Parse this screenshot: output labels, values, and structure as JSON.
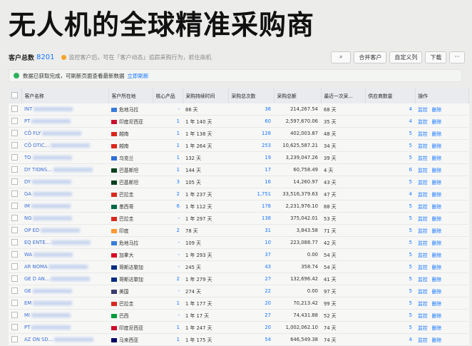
{
  "header": {
    "title": "无人机的全球精准采购商"
  },
  "toolbar": {
    "count_label": "客户总数",
    "count": "8201",
    "tip": "监控客户后，可在「客户动态」追踪采购行为，抓住商机",
    "buttons": [
      "合并客户",
      "自定义列",
      "下载",
      "···"
    ]
  },
  "banner": {
    "message": "数据已获取完成，可刷新页面查看最新数据",
    "link": "立即刷新"
  },
  "table": {
    "columns": [
      "客户名称",
      "客户所在地",
      "核心产品",
      "采购持续时间",
      "采购总次数",
      "采购总额",
      "最近一次采...",
      "供应商数量",
      "操作"
    ],
    "actions": [
      "监控",
      "删除"
    ],
    "rows": [
      [
        "INT",
        "危地马拉",
        "-",
        "86 天",
        "38",
        "214,267.54",
        "68 天",
        "4"
      ],
      [
        "PT",
        "印度尼西亚",
        "1",
        "1 年 140 天",
        "60",
        "2,597,670.06",
        "35 天",
        "4"
      ],
      [
        "CÔ FLY",
        "越南",
        "1",
        "1 年 138 天",
        "128",
        "402,003.87",
        "48 天",
        "5"
      ],
      [
        "CÔ OTIC...",
        "越南",
        "1",
        "1 年 264 天",
        "253",
        "10,625,587.21",
        "34 天",
        "5"
      ],
      [
        "TO",
        "乌克兰",
        "1",
        "132 天",
        "19",
        "3,239,047.26",
        "39 天",
        "5"
      ],
      [
        "DY TIONS...",
        "巴基斯坦",
        "1",
        "144 天",
        "17",
        "60,758.49",
        "4 天",
        "6"
      ],
      [
        "DY",
        "巴基斯坦",
        "3",
        "105 天",
        "16",
        "14,260.97",
        "43 天",
        "5"
      ],
      [
        "GA",
        "巴拉圭",
        "2",
        "1 年 237 天",
        "1,751",
        "33,516,379.63",
        "47 天",
        "4"
      ],
      [
        "IM",
        "墨西哥",
        "6",
        "1 年 112 天",
        "178",
        "2,231,976.10",
        "88 天",
        "5"
      ],
      [
        "NG",
        "巴拉圭",
        "-",
        "1 年 297 天",
        "138",
        "375,042.01",
        "53 天",
        "5"
      ],
      [
        "OP ED",
        "印度",
        "2",
        "78 天",
        "31",
        "3,843.58",
        "71 天",
        "5"
      ],
      [
        "EQ ENTE...",
        "危地马拉",
        "-",
        "109 天",
        "10",
        "223,088.77",
        "42 天",
        "5"
      ],
      [
        "WA",
        "加拿大",
        "-",
        "1 年 293 天",
        "37",
        "0.00",
        "54 天",
        "5"
      ],
      [
        "AR NOMA",
        "哥斯达黎加",
        "-",
        "245 天",
        "43",
        "358.74",
        "54 天",
        "5"
      ],
      [
        "GE D AN...",
        "哥斯达黎加",
        "2",
        "1 年 279 天",
        "27",
        "132,696.42",
        "41 天",
        "5"
      ],
      [
        "GE",
        "美国",
        "-",
        "274 天",
        "22",
        "0.00",
        "97 天",
        "5"
      ],
      [
        "EM",
        "巴拉圭",
        "1",
        "1 年 177 天",
        "20",
        "70,213.42",
        "99 天",
        "5"
      ],
      [
        "MI",
        "巴西",
        "-",
        "1 年 17 天",
        "27",
        "74,431.88",
        "52 天",
        "5"
      ],
      [
        "PT",
        "印度尼西亚",
        "1",
        "1 年 247 天",
        "20",
        "1,002,062.10",
        "74 天",
        "5"
      ],
      [
        "AZ ON SD...",
        "马来西亚",
        "1",
        "1 年 175 天",
        "54",
        "646,549.38",
        "74 天",
        "4"
      ]
    ]
  }
}
